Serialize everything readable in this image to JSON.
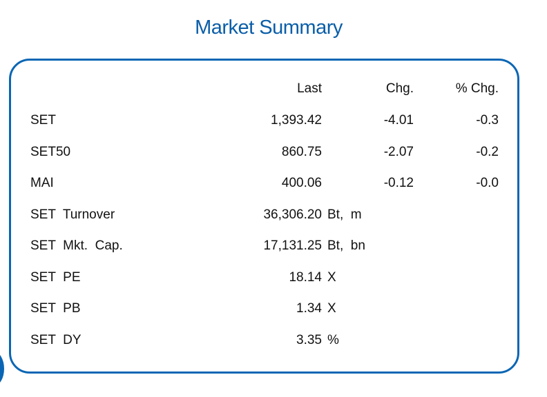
{
  "title": "Market Summary",
  "columns": {
    "last": "Last",
    "chg": "Chg.",
    "pct_chg": "% Chg."
  },
  "indices": [
    {
      "name": "SET",
      "last": "1,393.42",
      "chg": "-4.01",
      "pct_chg": "-0.3"
    },
    {
      "name": "SET50",
      "last": "860.75",
      "chg": "-2.07",
      "pct_chg": "-0.2"
    },
    {
      "name": "MAI",
      "last": "400.06",
      "chg": "-0.12",
      "pct_chg": "-0.0"
    }
  ],
  "stats": [
    {
      "name": "SET  Turnover",
      "value": "36,306.20",
      "unit": "Bt,  m"
    },
    {
      "name": "SET  Mkt.  Cap.",
      "value": "17,131.25",
      "unit": "Bt,  bn"
    },
    {
      "name": "SET  PE",
      "value": "18.14",
      "unit": "X"
    },
    {
      "name": "SET  PB",
      "value": "1.34",
      "unit": "X"
    },
    {
      "name": "SET  DY",
      "value": "3.35",
      "unit": "%"
    }
  ],
  "colors": {
    "accent": "#0a66b4",
    "title": "#0a5ea8"
  }
}
